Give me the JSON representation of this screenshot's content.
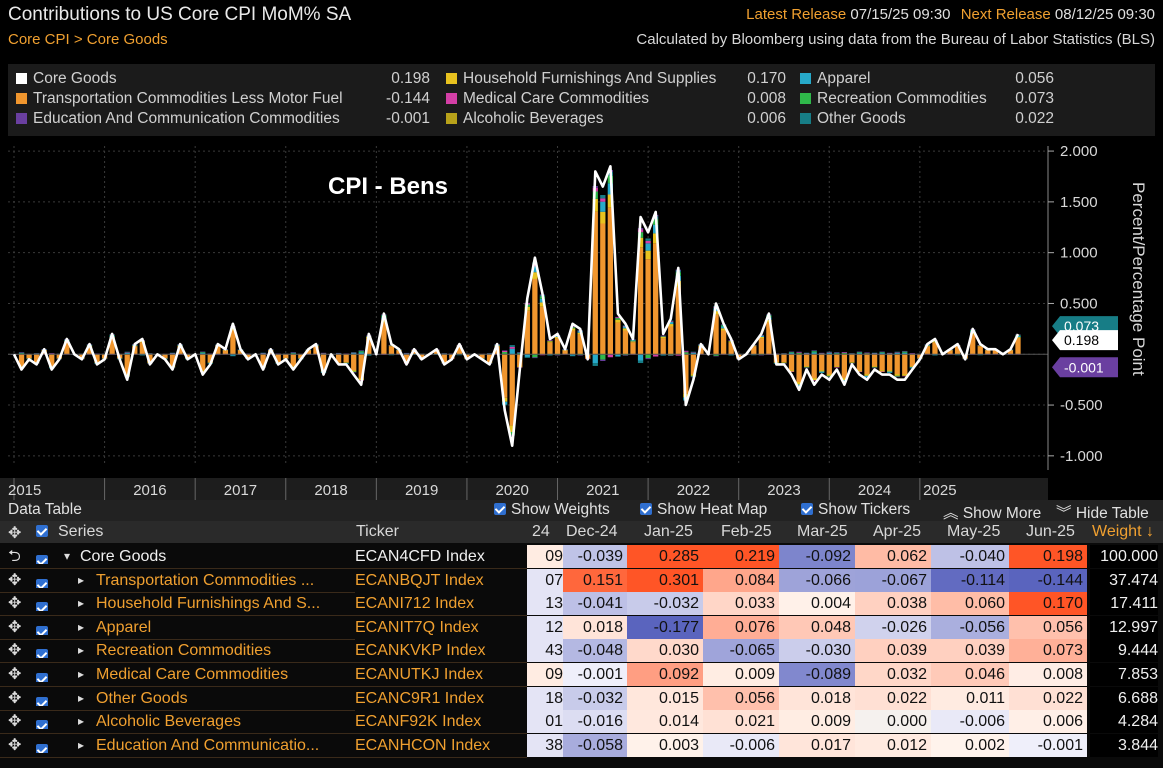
{
  "header": {
    "title": "Contributions to US Core CPI MoM% SA",
    "breadcrumb": [
      "Core CPI",
      "Core Goods"
    ],
    "breadcrumb_sep": ">",
    "latest_release_label": "Latest Release",
    "latest_release_value": "07/15/25 09:30",
    "next_release_label": "Next Release",
    "next_release_value": "08/12/25 09:30",
    "source_note": "Calculated by Bloomberg using data from the Bureau of Labor Statistics (BLS)"
  },
  "legend": [
    {
      "name": "Core Goods",
      "value": "0.198",
      "color": "#ffffff"
    },
    {
      "name": "Transportation Commodities Less Motor Fuel",
      "value": "-0.144",
      "color": "#f0962e"
    },
    {
      "name": "Education And Communication Commodities",
      "value": "-0.001",
      "color": "#6a3fa0"
    },
    {
      "name": "Household Furnishings And Supplies",
      "value": "0.170",
      "color": "#e8c21f"
    },
    {
      "name": "Medical Care Commodities",
      "value": "0.008",
      "color": "#d43fa6"
    },
    {
      "name": "Alcoholic Beverages",
      "value": "0.006",
      "color": "#b8a21a"
    },
    {
      "name": "Apparel",
      "value": "0.056",
      "color": "#27a9c9"
    },
    {
      "name": "Recreation Commodities",
      "value": "0.073",
      "color": "#2fb84a"
    },
    {
      "name": "Other Goods",
      "value": "0.022",
      "color": "#177d86"
    }
  ],
  "chart_data": {
    "type": "bar",
    "stacked": true,
    "annotation": "CPI - Bens",
    "ylabel": "Percent/Percentage Point",
    "ylim": [
      -1.1,
      2.05
    ],
    "yticks": [
      "2.000",
      "1.500",
      "1.000",
      "0.500",
      "-0.500",
      "-1.000"
    ],
    "xticks": [
      "2015",
      "2016",
      "2017",
      "2018",
      "2019",
      "2020",
      "2021",
      "2022",
      "2023",
      "2024",
      "2025"
    ],
    "grid": true,
    "value_tags": [
      {
        "label": "0.198",
        "color": "#ffffff"
      },
      {
        "label": "-0.001",
        "color": "#6a3fa0"
      },
      {
        "label": "0.073",
        "color": "#177d86"
      }
    ],
    "x_start": "2015-01",
    "x_end": "2025-06",
    "line_series": {
      "name": "Core Goods",
      "color": "#ffffff",
      "values": [
        0.0,
        -0.15,
        -0.05,
        -0.1,
        0.05,
        -0.15,
        -0.05,
        0.15,
        0.0,
        -0.05,
        0.1,
        -0.1,
        -0.05,
        0.2,
        -0.05,
        -0.25,
        0.1,
        0.15,
        -0.1,
        0.0,
        -0.05,
        -0.15,
        0.1,
        -0.05,
        0.0,
        -0.2,
        -0.1,
        0.1,
        0.05,
        0.3,
        0.05,
        -0.05,
        0.0,
        -0.15,
        0.05,
        -0.1,
        -0.05,
        -0.15,
        -0.05,
        0.05,
        0.1,
        -0.2,
        0.0,
        -0.1,
        -0.1,
        -0.2,
        -0.3,
        0.2,
        0.0,
        0.4,
        0.1,
        0.05,
        -0.1,
        0.05,
        -0.05,
        0.0,
        0.05,
        -0.1,
        -0.05,
        0.1,
        -0.05,
        0.0,
        -0.05,
        -0.1,
        0.1,
        -0.55,
        -0.9,
        -0.15,
        0.55,
        0.95,
        0.6,
        0.15,
        0.2,
        0.05,
        0.3,
        0.25,
        -0.05,
        1.8,
        1.65,
        1.85,
        0.4,
        0.3,
        0.15,
        1.35,
        1.2,
        1.4,
        0.2,
        0.35,
        0.85,
        -0.5,
        -0.25,
        0.1,
        0.0,
        0.5,
        0.3,
        0.15,
        -0.05,
        0.0,
        0.1,
        0.2,
        0.4,
        -0.1,
        -0.1,
        -0.2,
        -0.35,
        -0.15,
        -0.3,
        -0.2,
        -0.25,
        -0.15,
        -0.3,
        -0.1,
        -0.2,
        -0.25,
        -0.15,
        -0.2,
        -0.2,
        -0.25,
        -0.25,
        -0.15,
        -0.05,
        0.1,
        0.15,
        0.0,
        0.05,
        0.1,
        -0.05,
        0.25,
        0.1,
        0.05,
        0.05,
        0.0,
        0.05,
        0.198
      ]
    },
    "bar_series": [
      {
        "name": "Transportation Commodities Less Motor Fuel",
        "color": "#f0962e",
        "share": 0.78
      },
      {
        "name": "Household Furnishings And Supplies",
        "color": "#e8c21f",
        "share": 0.07
      },
      {
        "name": "Apparel",
        "color": "#27a9c9",
        "share": 0.06
      },
      {
        "name": "Recreation Commodities",
        "color": "#2fb84a",
        "share": 0.04
      },
      {
        "name": "Medical Care Commodities",
        "color": "#d43fa6",
        "share": 0.02
      },
      {
        "name": "Other Goods",
        "color": "#177d86",
        "share": 0.02
      },
      {
        "name": "Education And Communication Commodities",
        "color": "#6a3fa0",
        "share": 0.01
      }
    ]
  },
  "table": {
    "title": "Data Table",
    "options": [
      "Show Weights",
      "Show Heat Map",
      "Show Tickers"
    ],
    "show_more": "Show More",
    "hide_table": "Hide Table",
    "columns": {
      "series": "Series",
      "ticker": "Ticker",
      "months": [
        "Dec-24",
        "Jan-25",
        "Feb-25",
        "Mar-25",
        "Apr-25",
        "May-25",
        "Jun-25"
      ],
      "weight": "Weight",
      "partial_month": "24"
    },
    "rows": [
      {
        "name": "Core Goods",
        "ticker": "ECAN4CFD Index",
        "partial": "09",
        "values": [
          "-0.039",
          "0.285",
          "0.219",
          "-0.092",
          "0.062",
          "-0.040",
          "0.198"
        ],
        "weight": "100.000",
        "top": true
      },
      {
        "name": "Transportation Commodities ...",
        "ticker": "ECANBQJT Index",
        "partial": "07",
        "values": [
          "0.151",
          "0.301",
          "0.084",
          "-0.066",
          "-0.067",
          "-0.114",
          "-0.144"
        ],
        "weight": "37.474"
      },
      {
        "name": "Household Furnishings And S...",
        "ticker": "ECANI712 Index",
        "partial": "13",
        "values": [
          "-0.041",
          "-0.032",
          "0.033",
          "0.004",
          "0.038",
          "0.060",
          "0.170"
        ],
        "weight": "17.411"
      },
      {
        "name": "Apparel",
        "ticker": "ECANIT7Q Index",
        "partial": "12",
        "values": [
          "0.018",
          "-0.177",
          "0.076",
          "0.048",
          "-0.026",
          "-0.056",
          "0.056"
        ],
        "weight": "12.997"
      },
      {
        "name": "Recreation Commodities",
        "ticker": "ECANKVKP Index",
        "partial": "43",
        "values": [
          "-0.048",
          "0.030",
          "-0.065",
          "-0.030",
          "0.039",
          "0.039",
          "0.073"
        ],
        "weight": "9.444"
      },
      {
        "name": "Medical Care Commodities",
        "ticker": "ECANUTKJ Index",
        "partial": "09",
        "values": [
          "-0.001",
          "0.092",
          "0.009",
          "-0.089",
          "0.032",
          "0.046",
          "0.008"
        ],
        "weight": "7.853"
      },
      {
        "name": "Other Goods",
        "ticker": "ECANC9R1 Index",
        "partial": "18",
        "values": [
          "-0.032",
          "0.015",
          "0.056",
          "0.018",
          "0.022",
          "0.011",
          "0.022"
        ],
        "weight": "6.688"
      },
      {
        "name": "Alcoholic Beverages",
        "ticker": "ECANF92K Index",
        "partial": "01",
        "values": [
          "-0.016",
          "0.014",
          "0.021",
          "0.009",
          "0.000",
          "-0.006",
          "0.006"
        ],
        "weight": "4.284"
      },
      {
        "name": "Education And Communicatio...",
        "ticker": "ECANHCON Index",
        "partial": "38",
        "values": [
          "-0.058",
          "0.003",
          "-0.006",
          "0.017",
          "0.012",
          "0.002",
          "-0.001"
        ],
        "weight": "3.844"
      }
    ]
  }
}
